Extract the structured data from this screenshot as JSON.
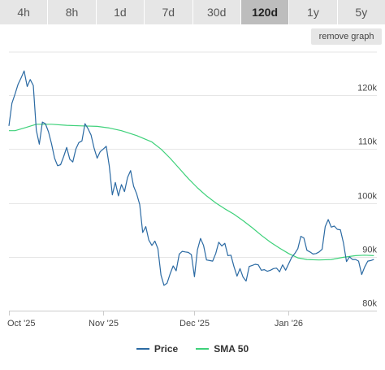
{
  "range_tabs": [
    {
      "label": "4h",
      "active": false
    },
    {
      "label": "8h",
      "active": false
    },
    {
      "label": "1d",
      "active": false
    },
    {
      "label": "7d",
      "active": false
    },
    {
      "label": "30d",
      "active": false
    },
    {
      "label": "120d",
      "active": true
    },
    {
      "label": "1y",
      "active": false
    },
    {
      "label": "5y",
      "active": false
    }
  ],
  "remove_graph_label": "remove graph",
  "colors": {
    "price": "#2b6aa3",
    "sma": "#3ed17a",
    "grid": "#e6e6e6",
    "axis_text": "#444444"
  },
  "chart_data": {
    "type": "line",
    "title": "",
    "xlabel": "",
    "ylabel": "",
    "x_ticks": [
      "Oct '25",
      "Nov '25",
      "Dec '25",
      "Jan '26"
    ],
    "x_tick_dates": [
      "2025-10-01",
      "2025-11-01",
      "2025-12-01",
      "2026-01-01"
    ],
    "x_range": [
      "2025-10-01",
      "2026-01-30"
    ],
    "y_ticks": [
      "80k",
      "90k",
      "100k",
      "110k",
      "120k"
    ],
    "y_tick_values": [
      80000,
      90000,
      100000,
      110000,
      120000
    ],
    "ylim": [
      80000,
      128000
    ],
    "grid": true,
    "legend_position": "bottom",
    "series": [
      {
        "name": "Price",
        "color": "#2b6aa3",
        "points": [
          [
            "2025-10-01",
            114300
          ],
          [
            "2025-10-02",
            118500
          ],
          [
            "2025-10-03",
            120200
          ],
          [
            "2025-10-04",
            122000
          ],
          [
            "2025-10-05",
            123200
          ],
          [
            "2025-10-06",
            124500
          ],
          [
            "2025-10-07",
            121600
          ],
          [
            "2025-10-08",
            122900
          ],
          [
            "2025-10-09",
            121800
          ],
          [
            "2025-10-10",
            113500
          ],
          [
            "2025-10-11",
            110900
          ],
          [
            "2025-10-12",
            115000
          ],
          [
            "2025-10-13",
            114700
          ],
          [
            "2025-10-14",
            113200
          ],
          [
            "2025-10-15",
            111000
          ],
          [
            "2025-10-16",
            108300
          ],
          [
            "2025-10-17",
            106900
          ],
          [
            "2025-10-18",
            107100
          ],
          [
            "2025-10-19",
            108600
          ],
          [
            "2025-10-20",
            110300
          ],
          [
            "2025-10-21",
            108100
          ],
          [
            "2025-10-22",
            107600
          ],
          [
            "2025-10-23",
            110000
          ],
          [
            "2025-10-24",
            111200
          ],
          [
            "2025-10-25",
            111500
          ],
          [
            "2025-10-26",
            114700
          ],
          [
            "2025-10-27",
            113800
          ],
          [
            "2025-10-28",
            112600
          ],
          [
            "2025-10-29",
            110200
          ],
          [
            "2025-10-30",
            108300
          ],
          [
            "2025-10-31",
            109500
          ],
          [
            "2025-11-01",
            110000
          ],
          [
            "2025-11-02",
            110500
          ],
          [
            "2025-11-03",
            106900
          ],
          [
            "2025-11-04",
            101500
          ],
          [
            "2025-11-05",
            103800
          ],
          [
            "2025-11-06",
            101300
          ],
          [
            "2025-11-07",
            103400
          ],
          [
            "2025-11-08",
            102100
          ],
          [
            "2025-11-09",
            104700
          ],
          [
            "2025-11-10",
            106000
          ],
          [
            "2025-11-11",
            103100
          ],
          [
            "2025-11-12",
            101700
          ],
          [
            "2025-11-13",
            99700
          ],
          [
            "2025-11-14",
            94500
          ],
          [
            "2025-11-15",
            95600
          ],
          [
            "2025-11-16",
            93100
          ],
          [
            "2025-11-17",
            92100
          ],
          [
            "2025-11-18",
            92900
          ],
          [
            "2025-11-19",
            91500
          ],
          [
            "2025-11-20",
            86600
          ],
          [
            "2025-11-21",
            84700
          ],
          [
            "2025-11-22",
            85100
          ],
          [
            "2025-11-23",
            86800
          ],
          [
            "2025-11-24",
            88300
          ],
          [
            "2025-11-25",
            87400
          ],
          [
            "2025-11-26",
            90500
          ],
          [
            "2025-11-27",
            91000
          ],
          [
            "2025-11-28",
            90900
          ],
          [
            "2025-11-29",
            90800
          ],
          [
            "2025-11-30",
            90400
          ],
          [
            "2025-12-01",
            86300
          ],
          [
            "2025-12-02",
            91300
          ],
          [
            "2025-12-03",
            93400
          ],
          [
            "2025-12-04",
            92100
          ],
          [
            "2025-12-05",
            89400
          ],
          [
            "2025-12-06",
            89300
          ],
          [
            "2025-12-07",
            89200
          ],
          [
            "2025-12-08",
            90600
          ],
          [
            "2025-12-09",
            92700
          ],
          [
            "2025-12-10",
            92000
          ],
          [
            "2025-12-11",
            92500
          ],
          [
            "2025-12-12",
            90200
          ],
          [
            "2025-12-13",
            90300
          ],
          [
            "2025-12-14",
            88200
          ],
          [
            "2025-12-15",
            86400
          ],
          [
            "2025-12-16",
            87800
          ],
          [
            "2025-12-17",
            86200
          ],
          [
            "2025-12-18",
            85500
          ],
          [
            "2025-12-19",
            88200
          ],
          [
            "2025-12-20",
            88400
          ],
          [
            "2025-12-21",
            88600
          ],
          [
            "2025-12-22",
            88500
          ],
          [
            "2025-12-23",
            87500
          ],
          [
            "2025-12-24",
            87600
          ],
          [
            "2025-12-25",
            87300
          ],
          [
            "2025-12-26",
            87500
          ],
          [
            "2025-12-27",
            87800
          ],
          [
            "2025-12-28",
            87900
          ],
          [
            "2025-12-29",
            87200
          ],
          [
            "2025-12-30",
            88500
          ],
          [
            "2025-12-31",
            87500
          ],
          [
            "2026-01-01",
            88700
          ],
          [
            "2026-01-02",
            89900
          ],
          [
            "2026-01-03",
            90600
          ],
          [
            "2026-01-04",
            91500
          ],
          [
            "2026-01-05",
            93800
          ],
          [
            "2026-01-06",
            93500
          ],
          [
            "2026-01-07",
            91200
          ],
          [
            "2026-01-08",
            90900
          ],
          [
            "2026-01-09",
            90500
          ],
          [
            "2026-01-10",
            90600
          ],
          [
            "2026-01-11",
            90900
          ],
          [
            "2026-01-12",
            91400
          ],
          [
            "2026-01-13",
            95600
          ],
          [
            "2026-01-14",
            96900
          ],
          [
            "2026-01-15",
            95500
          ],
          [
            "2026-01-16",
            95700
          ],
          [
            "2026-01-17",
            95100
          ],
          [
            "2026-01-18",
            95000
          ],
          [
            "2026-01-19",
            92600
          ],
          [
            "2026-01-20",
            89100
          ],
          [
            "2026-01-21",
            90000
          ],
          [
            "2026-01-22",
            89500
          ],
          [
            "2026-01-23",
            89500
          ],
          [
            "2026-01-24",
            89200
          ],
          [
            "2026-01-25",
            86700
          ],
          [
            "2026-01-26",
            88100
          ],
          [
            "2026-01-27",
            89200
          ],
          [
            "2026-01-28",
            89300
          ],
          [
            "2026-01-29",
            89500
          ]
        ]
      },
      {
        "name": "SMA 50",
        "color": "#3ed17a",
        "points": [
          [
            "2025-10-01",
            113400
          ],
          [
            "2025-10-03",
            113400
          ],
          [
            "2025-10-06",
            113900
          ],
          [
            "2025-10-10",
            114600
          ],
          [
            "2025-10-15",
            114600
          ],
          [
            "2025-10-20",
            114400
          ],
          [
            "2025-10-25",
            114300
          ],
          [
            "2025-10-30",
            114200
          ],
          [
            "2025-11-03",
            113900
          ],
          [
            "2025-11-07",
            113400
          ],
          [
            "2025-11-12",
            112500
          ],
          [
            "2025-11-17",
            111300
          ],
          [
            "2025-11-20",
            110000
          ],
          [
            "2025-11-23",
            108300
          ],
          [
            "2025-11-26",
            106400
          ],
          [
            "2025-11-29",
            104500
          ],
          [
            "2025-12-02",
            102800
          ],
          [
            "2025-12-05",
            101300
          ],
          [
            "2025-12-08",
            100000
          ],
          [
            "2025-12-11",
            98900
          ],
          [
            "2025-12-14",
            97900
          ],
          [
            "2025-12-17",
            96700
          ],
          [
            "2025-12-20",
            95400
          ],
          [
            "2025-12-23",
            94000
          ],
          [
            "2025-12-26",
            92700
          ],
          [
            "2025-12-29",
            91600
          ],
          [
            "2026-01-01",
            90600
          ],
          [
            "2026-01-04",
            89800
          ],
          [
            "2026-01-07",
            89500
          ],
          [
            "2026-01-11",
            89400
          ],
          [
            "2026-01-15",
            89500
          ],
          [
            "2026-01-19",
            89900
          ],
          [
            "2026-01-23",
            90200
          ],
          [
            "2026-01-26",
            90300
          ],
          [
            "2026-01-29",
            90200
          ]
        ]
      }
    ]
  }
}
